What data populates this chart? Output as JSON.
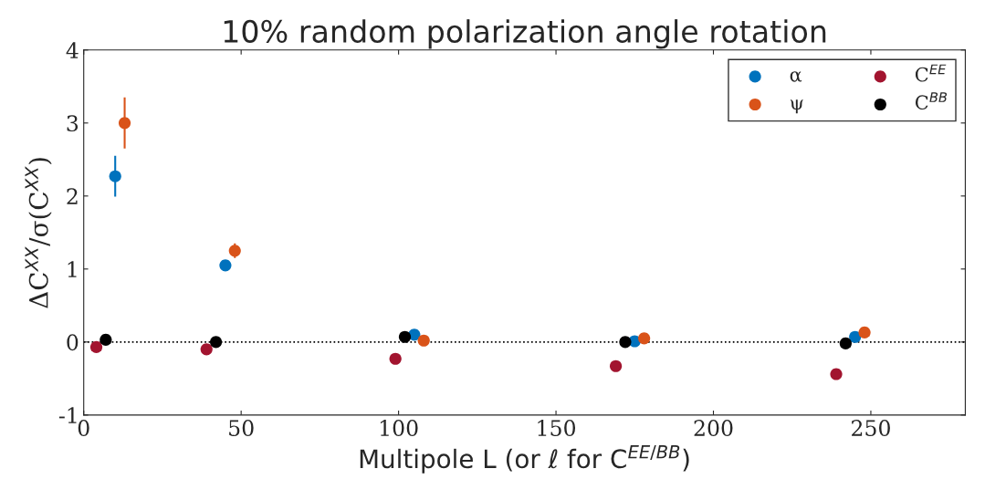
{
  "chart_data": {
    "type": "scatter",
    "title": "10% random polarization angle rotation",
    "xlabel": "Multipole L (or ℓ for C$^{EE/BB}$)",
    "ylabel": "ΔC$^{XX}$/σ(C$^{XX}$)",
    "xlim": [
      0,
      280
    ],
    "xticks": [
      0,
      50,
      100,
      150,
      200,
      250
    ],
    "ylim": [
      -1,
      4
    ],
    "yticks": [
      {
        "value": -1,
        "label": "-1"
      },
      0,
      1,
      2,
      3,
      4
    ],
    "series": [
      {
        "name": "α",
        "color": "#0072bd",
        "x": [
          10,
          45,
          105,
          175,
          245
        ],
        "values": [
          2.27,
          1.05,
          0.1,
          0.01,
          0.07
        ],
        "errors": [
          0.28,
          null,
          null,
          null,
          null
        ]
      },
      {
        "name": "ψ",
        "color": "#d95319",
        "x": [
          13,
          48,
          108,
          178,
          248
        ],
        "values": [
          3.0,
          1.25,
          0.02,
          0.05,
          0.13
        ],
        "errors": [
          0.35,
          0.1,
          null,
          null,
          null
        ]
      },
      {
        "name": "C$^{EE}$",
        "color": "#a2142f",
        "x": [
          4,
          39,
          99,
          169,
          239
        ],
        "values": [
          -0.07,
          -0.1,
          -0.23,
          -0.33,
          -0.44
        ]
      },
      {
        "name": "C$^{BB}$",
        "color": "#000000",
        "x": [
          7,
          42,
          102,
          172,
          242
        ],
        "values": [
          0.03,
          0.0,
          0.07,
          0.0,
          -0.02
        ]
      }
    ],
    "ref_lines": [
      {
        "axis": "y",
        "value": 0,
        "color": "#000000",
        "line_style": "dotted"
      }
    ],
    "marker": "circle",
    "grid": false,
    "legend": "top right"
  }
}
